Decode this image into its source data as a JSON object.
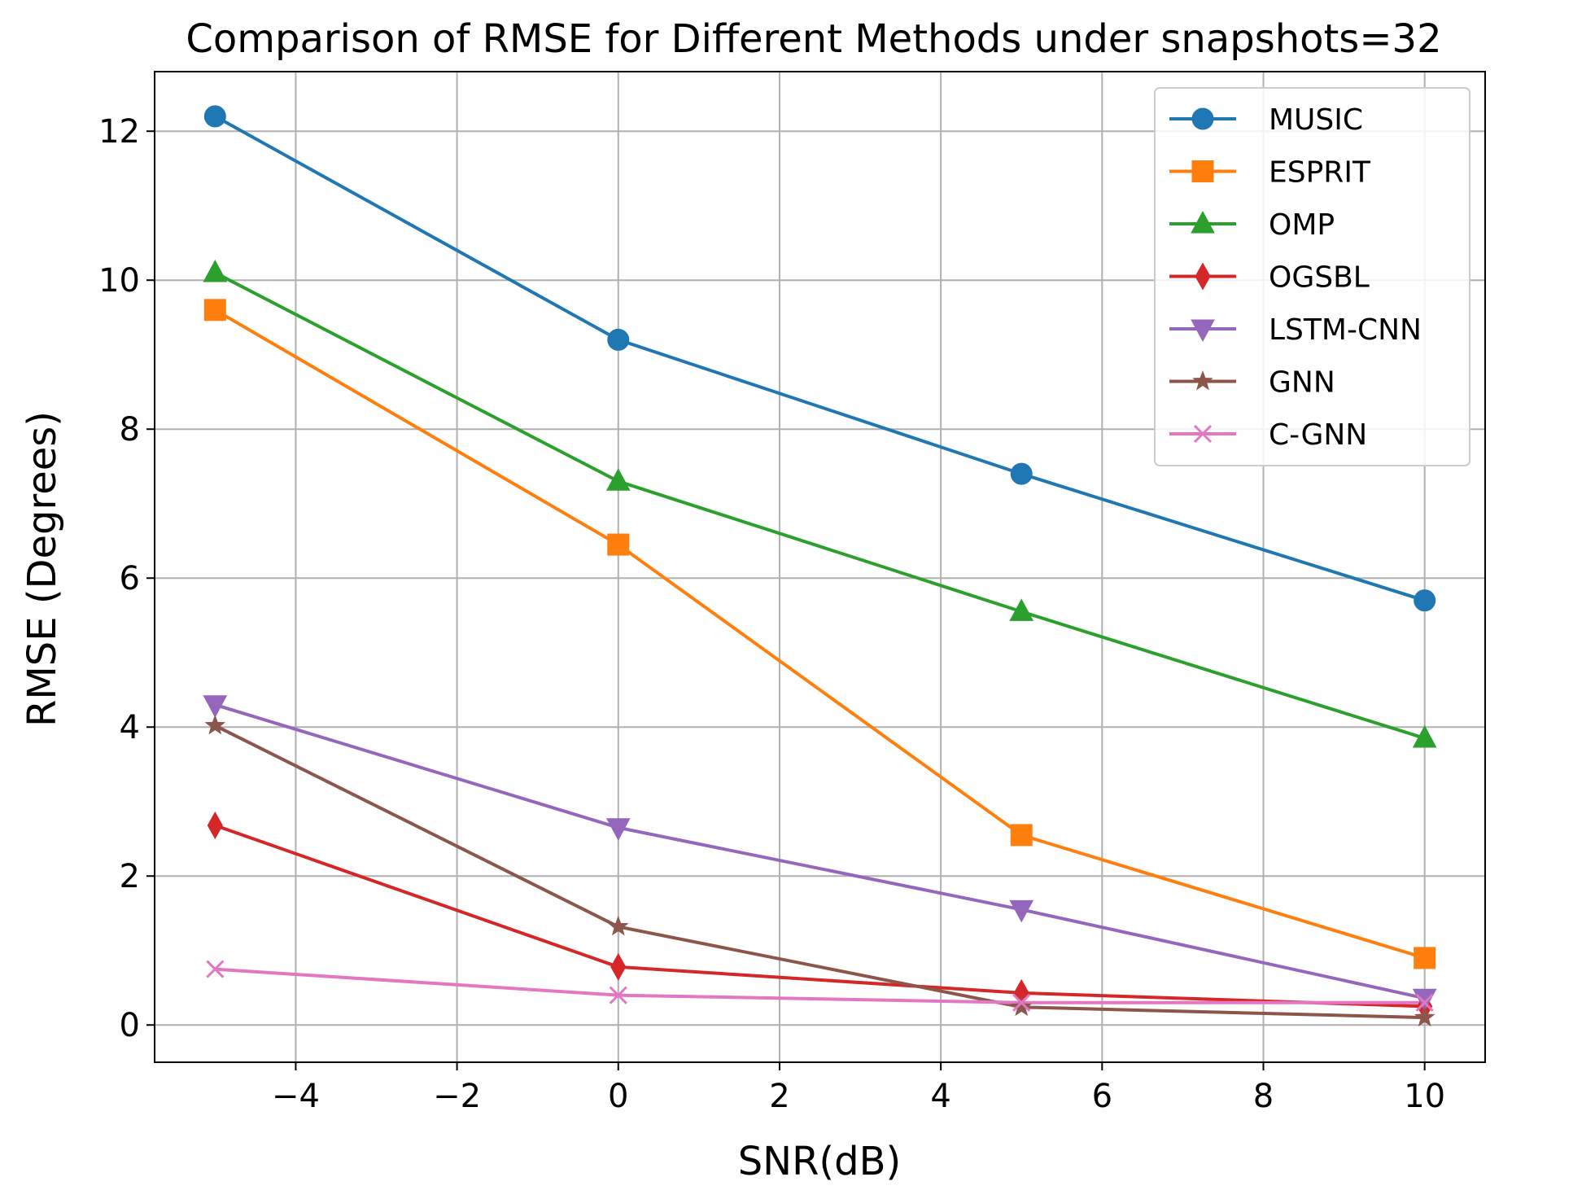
{
  "chart_data": {
    "type": "line",
    "title": "Comparison of RMSE for Different Methods under snapshots=32",
    "xlabel": "SNR(dB)",
    "ylabel": "RMSE (Degrees)",
    "x": [
      -5,
      0,
      5,
      10
    ],
    "xlim": [
      -5.75,
      10.75
    ],
    "ylim": [
      -0.5,
      12.8
    ],
    "xticks": [
      -4,
      -2,
      0,
      2,
      4,
      6,
      8,
      10
    ],
    "xtick_labels": [
      "−4",
      "−2",
      "0",
      "2",
      "4",
      "6",
      "8",
      "10"
    ],
    "yticks": [
      0,
      2,
      4,
      6,
      8,
      10,
      12
    ],
    "ytick_labels": [
      "0",
      "2",
      "4",
      "6",
      "8",
      "10",
      "12"
    ],
    "grid": true,
    "legend_position": "top-right",
    "series": [
      {
        "name": "MUSIC",
        "values": [
          12.2,
          9.2,
          7.4,
          5.7
        ],
        "color": "#1f77b4",
        "marker": "circle"
      },
      {
        "name": "ESPRIT",
        "values": [
          9.6,
          6.45,
          2.55,
          0.9
        ],
        "color": "#ff7f0e",
        "marker": "square"
      },
      {
        "name": "OMP",
        "values": [
          10.1,
          7.3,
          5.55,
          3.85
        ],
        "color": "#2ca02c",
        "marker": "triangle-up"
      },
      {
        "name": "OGSBL",
        "values": [
          2.68,
          0.78,
          0.43,
          0.25
        ],
        "color": "#d62728",
        "marker": "diamond"
      },
      {
        "name": "LSTM-CNN",
        "values": [
          4.3,
          2.65,
          1.55,
          0.36
        ],
        "color": "#9467bd",
        "marker": "triangle-down"
      },
      {
        "name": "GNN",
        "values": [
          4.02,
          1.32,
          0.24,
          0.1
        ],
        "color": "#8c564b",
        "marker": "star"
      },
      {
        "name": "C-GNN",
        "values": [
          0.75,
          0.4,
          0.3,
          0.3
        ],
        "color": "#e377c2",
        "marker": "x"
      }
    ]
  }
}
